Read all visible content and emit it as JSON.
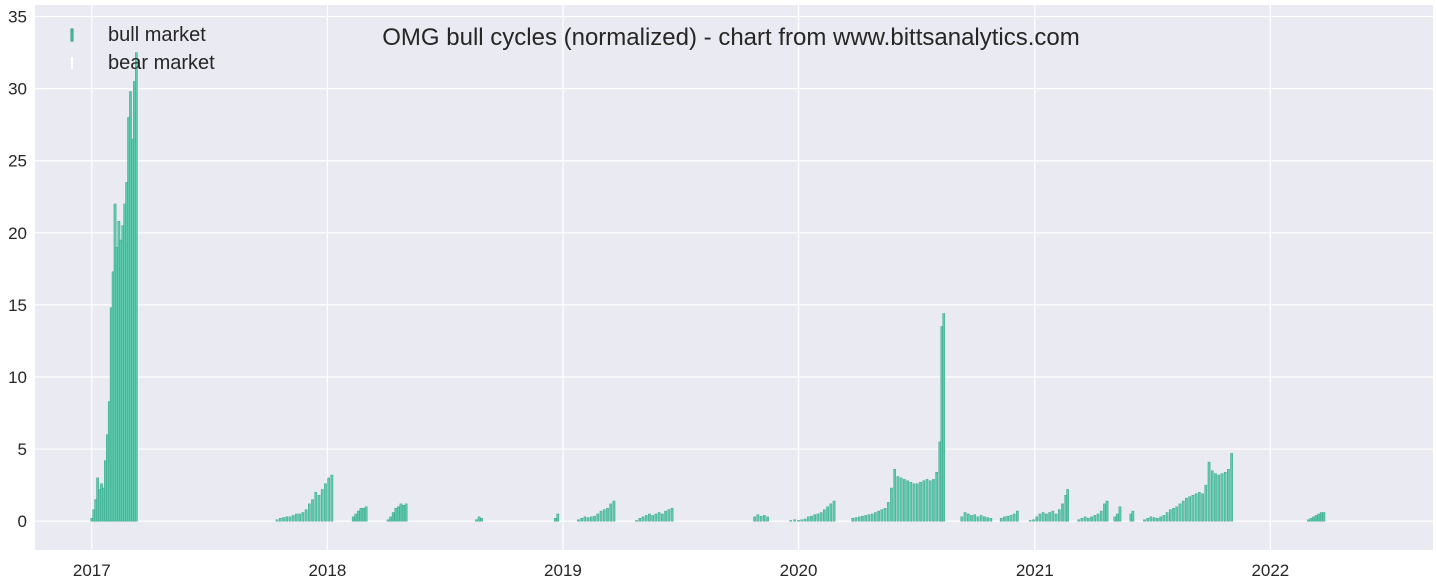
{
  "chart_data": {
    "type": "bar",
    "title": "OMG bull cycles (normalized)  - chart from www.bittsanalytics.com",
    "xlabel": "",
    "ylabel": "",
    "xlim": [
      "2016-10-05",
      "2022-09-10"
    ],
    "ylim": [
      -2,
      35.8
    ],
    "x_ticks": [
      "2017",
      "2018",
      "2019",
      "2020",
      "2021",
      "2022"
    ],
    "y_ticks": [
      0,
      5,
      10,
      15,
      20,
      25,
      30,
      35
    ],
    "grid": true,
    "legend_position": "top-left",
    "colors": {
      "bull market": "#5fc9ad",
      "bull_edge": "#2a9d80",
      "bear market": "#ffffff",
      "background": "#eaeaf2",
      "grid": "#ffffff"
    },
    "series": [
      {
        "name": "bull market",
        "points": [
          [
            "2017-01-01",
            0.2
          ],
          [
            "2017-01-04",
            0.8
          ],
          [
            "2017-01-07",
            1.5
          ],
          [
            "2017-01-10",
            3.0
          ],
          [
            "2017-01-13",
            2.2
          ],
          [
            "2017-01-16",
            2.6
          ],
          [
            "2017-01-19",
            2.3
          ],
          [
            "2017-01-22",
            4.2
          ],
          [
            "2017-01-25",
            6.0
          ],
          [
            "2017-01-28",
            8.3
          ],
          [
            "2017-01-31",
            14.8
          ],
          [
            "2017-02-03",
            17.3
          ],
          [
            "2017-02-06",
            22.0
          ],
          [
            "2017-02-09",
            19.0
          ],
          [
            "2017-02-12",
            20.8
          ],
          [
            "2017-02-15",
            19.5
          ],
          [
            "2017-02-18",
            20.5
          ],
          [
            "2017-02-21",
            22.0
          ],
          [
            "2017-02-24",
            23.5
          ],
          [
            "2017-02-27",
            28.0
          ],
          [
            "2017-03-02",
            29.8
          ],
          [
            "2017-03-05",
            26.5
          ],
          [
            "2017-03-08",
            30.5
          ],
          [
            "2017-03-11",
            32.5
          ],
          [
            "2017-10-15",
            0.1
          ],
          [
            "2017-10-20",
            0.2
          ],
          [
            "2017-10-25",
            0.25
          ],
          [
            "2017-10-30",
            0.3
          ],
          [
            "2017-11-04",
            0.3
          ],
          [
            "2017-11-09",
            0.4
          ],
          [
            "2017-11-14",
            0.5
          ],
          [
            "2017-11-19",
            0.5
          ],
          [
            "2017-11-24",
            0.6
          ],
          [
            "2017-11-29",
            0.8
          ],
          [
            "2017-12-04",
            1.2
          ],
          [
            "2017-12-09",
            1.5
          ],
          [
            "2017-12-14",
            2.0
          ],
          [
            "2017-12-19",
            1.8
          ],
          [
            "2017-12-24",
            2.2
          ],
          [
            "2017-12-29",
            2.6
          ],
          [
            "2018-01-03",
            3.0
          ],
          [
            "2018-01-08",
            3.2
          ],
          [
            "2018-02-10",
            0.3
          ],
          [
            "2018-02-14",
            0.5
          ],
          [
            "2018-02-18",
            0.7
          ],
          [
            "2018-02-22",
            0.9
          ],
          [
            "2018-02-26",
            0.9
          ],
          [
            "2018-03-02",
            1.0
          ],
          [
            "2018-04-05",
            0.1
          ],
          [
            "2018-04-09",
            0.3
          ],
          [
            "2018-04-13",
            0.6
          ],
          [
            "2018-04-17",
            0.9
          ],
          [
            "2018-04-21",
            1.0
          ],
          [
            "2018-04-25",
            1.2
          ],
          [
            "2018-04-29",
            1.1
          ],
          [
            "2018-05-03",
            1.2
          ],
          [
            "2018-08-20",
            0.1
          ],
          [
            "2018-08-24",
            0.3
          ],
          [
            "2018-08-28",
            0.2
          ],
          [
            "2018-12-20",
            0.2
          ],
          [
            "2018-12-24",
            0.5
          ],
          [
            "2019-01-25",
            0.1
          ],
          [
            "2019-01-30",
            0.2
          ],
          [
            "2019-02-04",
            0.3
          ],
          [
            "2019-02-09",
            0.25
          ],
          [
            "2019-02-14",
            0.3
          ],
          [
            "2019-02-19",
            0.35
          ],
          [
            "2019-02-24",
            0.5
          ],
          [
            "2019-03-01",
            0.7
          ],
          [
            "2019-03-06",
            0.8
          ],
          [
            "2019-03-11",
            0.9
          ],
          [
            "2019-03-16",
            1.2
          ],
          [
            "2019-03-21",
            1.4
          ],
          [
            "2019-04-25",
            0.05
          ],
          [
            "2019-04-30",
            0.2
          ],
          [
            "2019-05-05",
            0.3
          ],
          [
            "2019-05-10",
            0.4
          ],
          [
            "2019-05-15",
            0.5
          ],
          [
            "2019-05-20",
            0.4
          ],
          [
            "2019-05-25",
            0.5
          ],
          [
            "2019-05-30",
            0.6
          ],
          [
            "2019-06-04",
            0.5
          ],
          [
            "2019-06-09",
            0.7
          ],
          [
            "2019-06-14",
            0.8
          ],
          [
            "2019-06-19",
            0.9
          ],
          [
            "2019-10-25",
            0.3
          ],
          [
            "2019-10-30",
            0.45
          ],
          [
            "2019-11-04",
            0.35
          ],
          [
            "2019-11-09",
            0.4
          ],
          [
            "2019-11-14",
            0.3
          ],
          [
            "2019-12-20",
            0.05
          ],
          [
            "2019-12-26",
            0.1
          ],
          [
            "2020-01-01",
            0.05
          ],
          [
            "2020-01-06",
            0.1
          ],
          [
            "2020-01-11",
            0.15
          ],
          [
            "2020-01-16",
            0.3
          ],
          [
            "2020-01-21",
            0.35
          ],
          [
            "2020-01-26",
            0.45
          ],
          [
            "2020-01-31",
            0.5
          ],
          [
            "2020-02-05",
            0.6
          ],
          [
            "2020-02-10",
            0.8
          ],
          [
            "2020-02-15",
            1.0
          ],
          [
            "2020-02-20",
            1.2
          ],
          [
            "2020-02-25",
            1.4
          ],
          [
            "2020-03-25",
            0.2
          ],
          [
            "2020-03-30",
            0.25
          ],
          [
            "2020-04-04",
            0.3
          ],
          [
            "2020-04-09",
            0.35
          ],
          [
            "2020-04-14",
            0.4
          ],
          [
            "2020-04-19",
            0.45
          ],
          [
            "2020-04-24",
            0.5
          ],
          [
            "2020-04-29",
            0.6
          ],
          [
            "2020-05-04",
            0.7
          ],
          [
            "2020-05-09",
            0.8
          ],
          [
            "2020-05-14",
            0.9
          ],
          [
            "2020-05-19",
            1.3
          ],
          [
            "2020-05-24",
            2.3
          ],
          [
            "2020-05-29",
            3.6
          ],
          [
            "2020-06-03",
            3.1
          ],
          [
            "2020-06-08",
            3.0
          ],
          [
            "2020-06-13",
            2.9
          ],
          [
            "2020-06-18",
            2.8
          ],
          [
            "2020-06-23",
            2.7
          ],
          [
            "2020-06-28",
            2.6
          ],
          [
            "2020-07-03",
            2.6
          ],
          [
            "2020-07-08",
            2.7
          ],
          [
            "2020-07-13",
            2.8
          ],
          [
            "2020-07-18",
            2.9
          ],
          [
            "2020-07-23",
            2.8
          ],
          [
            "2020-07-28",
            2.9
          ],
          [
            "2020-08-02",
            3.4
          ],
          [
            "2020-08-07",
            5.5
          ],
          [
            "2020-08-10",
            13.5
          ],
          [
            "2020-08-13",
            14.4
          ],
          [
            "2020-09-10",
            0.3
          ],
          [
            "2020-09-15",
            0.6
          ],
          [
            "2020-09-20",
            0.5
          ],
          [
            "2020-09-25",
            0.4
          ],
          [
            "2020-09-30",
            0.45
          ],
          [
            "2020-10-05",
            0.3
          ],
          [
            "2020-10-10",
            0.4
          ],
          [
            "2020-10-15",
            0.3
          ],
          [
            "2020-10-20",
            0.25
          ],
          [
            "2020-10-25",
            0.2
          ],
          [
            "2020-11-10",
            0.2
          ],
          [
            "2020-11-15",
            0.3
          ],
          [
            "2020-11-20",
            0.35
          ],
          [
            "2020-11-25",
            0.4
          ],
          [
            "2020-11-30",
            0.5
          ],
          [
            "2020-12-05",
            0.7
          ],
          [
            "2020-12-25",
            0.05
          ],
          [
            "2020-12-30",
            0.1
          ],
          [
            "2021-01-04",
            0.3
          ],
          [
            "2021-01-09",
            0.5
          ],
          [
            "2021-01-14",
            0.6
          ],
          [
            "2021-01-19",
            0.5
          ],
          [
            "2021-01-24",
            0.6
          ],
          [
            "2021-01-29",
            0.7
          ],
          [
            "2021-02-03",
            0.5
          ],
          [
            "2021-02-08",
            0.8
          ],
          [
            "2021-02-13",
            1.2
          ],
          [
            "2021-02-18",
            1.8
          ],
          [
            "2021-02-21",
            2.2
          ],
          [
            "2021-03-10",
            0.1
          ],
          [
            "2021-03-15",
            0.2
          ],
          [
            "2021-03-20",
            0.3
          ],
          [
            "2021-03-25",
            0.2
          ],
          [
            "2021-03-30",
            0.3
          ],
          [
            "2021-04-04",
            0.4
          ],
          [
            "2021-04-09",
            0.5
          ],
          [
            "2021-04-14",
            0.7
          ],
          [
            "2021-04-19",
            1.2
          ],
          [
            "2021-04-23",
            1.4
          ],
          [
            "2021-05-05",
            0.3
          ],
          [
            "2021-05-09",
            0.5
          ],
          [
            "2021-05-13",
            1.0
          ],
          [
            "2021-05-30",
            0.5
          ],
          [
            "2021-06-02",
            0.7
          ],
          [
            "2021-06-20",
            0.1
          ],
          [
            "2021-06-25",
            0.2
          ],
          [
            "2021-06-30",
            0.3
          ],
          [
            "2021-07-05",
            0.25
          ],
          [
            "2021-07-10",
            0.2
          ],
          [
            "2021-07-15",
            0.3
          ],
          [
            "2021-07-20",
            0.4
          ],
          [
            "2021-07-25",
            0.6
          ],
          [
            "2021-07-30",
            0.8
          ],
          [
            "2021-08-04",
            0.9
          ],
          [
            "2021-08-09",
            1.0
          ],
          [
            "2021-08-14",
            1.2
          ],
          [
            "2021-08-19",
            1.4
          ],
          [
            "2021-08-24",
            1.6
          ],
          [
            "2021-08-29",
            1.7
          ],
          [
            "2021-09-03",
            1.8
          ],
          [
            "2021-09-08",
            1.9
          ],
          [
            "2021-09-13",
            2.0
          ],
          [
            "2021-09-18",
            1.9
          ],
          [
            "2021-09-23",
            2.5
          ],
          [
            "2021-09-28",
            4.1
          ],
          [
            "2021-10-03",
            3.5
          ],
          [
            "2021-10-08",
            3.3
          ],
          [
            "2021-10-13",
            3.2
          ],
          [
            "2021-10-18",
            3.3
          ],
          [
            "2021-10-23",
            3.4
          ],
          [
            "2021-10-28",
            3.6
          ],
          [
            "2021-11-02",
            4.7
          ],
          [
            "2022-03-01",
            0.1
          ],
          [
            "2022-03-05",
            0.2
          ],
          [
            "2022-03-09",
            0.3
          ],
          [
            "2022-03-13",
            0.4
          ],
          [
            "2022-03-17",
            0.5
          ],
          [
            "2022-03-21",
            0.6
          ],
          [
            "2022-03-25",
            0.6
          ]
        ]
      }
    ],
    "legend": [
      "bull market",
      "bear market"
    ]
  }
}
